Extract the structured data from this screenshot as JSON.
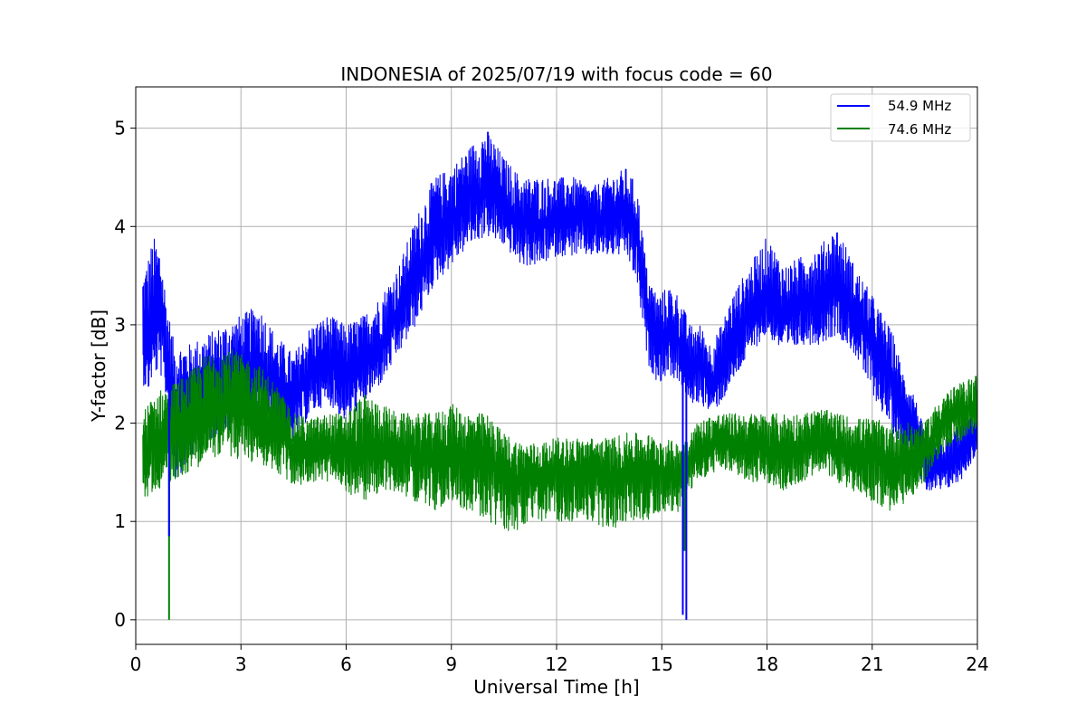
{
  "chart_data": {
    "type": "line",
    "title": "INDONESIA of 2025/07/19 with focus code = 60",
    "xlabel": "Universal Time [h]",
    "ylabel": "Y-factor [dB]",
    "xlim": [
      0,
      24
    ],
    "ylim": [
      -0.25,
      5.42
    ],
    "xticks": [
      0,
      3,
      6,
      9,
      12,
      15,
      18,
      21,
      24
    ],
    "yticks": [
      0,
      1,
      2,
      3,
      4,
      5
    ],
    "grid": true,
    "legend_position": "top-right",
    "series": [
      {
        "name": "54.9 MHz",
        "color": "#0000ff",
        "x": [
          0.2,
          0.35,
          0.5,
          0.7,
          0.9,
          1.1,
          1.5,
          2.0,
          2.5,
          3.0,
          3.5,
          4.0,
          4.5,
          5.0,
          5.5,
          6.0,
          6.5,
          7.0,
          7.5,
          8.0,
          8.5,
          9.0,
          9.5,
          10.0,
          10.5,
          11.0,
          11.5,
          12.0,
          12.5,
          13.0,
          13.5,
          14.0,
          14.3,
          14.6,
          14.9,
          15.2,
          15.5,
          15.8,
          16.1,
          16.4,
          16.7,
          17.0,
          17.5,
          18.0,
          18.5,
          19.0,
          19.5,
          20.0,
          20.5,
          21.0,
          21.3,
          21.6,
          21.9,
          22.2,
          22.5,
          23.0,
          23.5,
          24.0
        ],
        "center": [
          3.0,
          2.8,
          3.0,
          3.1,
          2.6,
          2.2,
          2.2,
          2.3,
          2.4,
          2.5,
          2.6,
          2.3,
          2.2,
          2.5,
          2.6,
          2.5,
          2.6,
          2.8,
          3.1,
          3.5,
          3.9,
          4.1,
          4.3,
          4.4,
          4.2,
          4.0,
          4.0,
          4.05,
          4.1,
          4.05,
          4.1,
          4.1,
          3.9,
          3.1,
          2.8,
          2.9,
          2.8,
          2.5,
          2.6,
          2.4,
          2.6,
          2.8,
          3.1,
          3.3,
          3.1,
          3.2,
          3.3,
          3.4,
          3.1,
          2.8,
          2.6,
          2.4,
          2.1,
          2.0,
          1.6,
          1.55,
          1.7,
          1.9
        ],
        "lower": [
          2.4,
          2.3,
          2.5,
          2.5,
          2.2,
          1.4,
          1.6,
          1.8,
          1.9,
          1.9,
          2.0,
          1.8,
          1.8,
          2.1,
          2.2,
          2.0,
          2.2,
          2.4,
          2.7,
          3.0,
          3.4,
          3.6,
          3.8,
          3.9,
          3.8,
          3.6,
          3.6,
          3.7,
          3.7,
          3.7,
          3.7,
          3.7,
          3.4,
          2.6,
          2.4,
          2.5,
          2.4,
          2.2,
          2.2,
          2.1,
          2.2,
          2.4,
          2.7,
          2.9,
          2.7,
          2.8,
          2.8,
          2.9,
          2.7,
          2.3,
          2.1,
          1.9,
          1.7,
          1.6,
          1.3,
          1.3,
          1.4,
          1.7
        ],
        "upper": [
          3.5,
          3.7,
          3.9,
          3.8,
          3.2,
          2.8,
          2.8,
          2.9,
          3.0,
          3.1,
          3.2,
          2.9,
          2.7,
          3.0,
          3.1,
          3.0,
          3.1,
          3.3,
          3.6,
          4.1,
          4.5,
          4.6,
          4.8,
          5.0,
          4.7,
          4.5,
          4.5,
          4.5,
          4.5,
          4.4,
          4.5,
          4.6,
          4.4,
          3.5,
          3.3,
          3.4,
          3.3,
          3.0,
          3.0,
          2.8,
          3.0,
          3.3,
          3.6,
          3.9,
          3.6,
          3.7,
          3.8,
          4.0,
          3.6,
          3.3,
          3.1,
          2.9,
          2.5,
          2.3,
          1.9,
          1.8,
          2.0,
          2.1
        ]
      },
      {
        "name": "74.6 MHz",
        "color": "#008000",
        "x": [
          0.2,
          0.5,
          1.0,
          1.5,
          2.0,
          2.5,
          3.0,
          3.5,
          4.0,
          4.5,
          5.0,
          5.5,
          6.0,
          6.5,
          7.0,
          7.5,
          8.0,
          8.5,
          9.0,
          9.5,
          10.0,
          10.5,
          11.0,
          11.5,
          12.0,
          12.5,
          13.0,
          13.5,
          14.0,
          14.5,
          15.0,
          15.5,
          16.0,
          16.5,
          17.0,
          17.5,
          18.0,
          18.5,
          19.0,
          19.5,
          20.0,
          20.5,
          21.0,
          21.5,
          22.0,
          22.5,
          23.0,
          23.5,
          24.0
        ],
        "center": [
          1.7,
          1.8,
          1.9,
          2.0,
          2.1,
          2.2,
          2.2,
          2.1,
          1.9,
          1.75,
          1.7,
          1.75,
          1.7,
          1.7,
          1.75,
          1.7,
          1.7,
          1.65,
          1.7,
          1.65,
          1.6,
          1.5,
          1.45,
          1.45,
          1.5,
          1.5,
          1.5,
          1.45,
          1.5,
          1.5,
          1.5,
          1.45,
          1.7,
          1.8,
          1.8,
          1.75,
          1.75,
          1.7,
          1.75,
          1.8,
          1.75,
          1.7,
          1.65,
          1.6,
          1.6,
          1.7,
          2.0,
          2.1,
          2.2
        ],
        "lower": [
          1.2,
          1.3,
          1.4,
          1.5,
          1.6,
          1.7,
          1.6,
          1.6,
          1.5,
          1.35,
          1.4,
          1.4,
          1.3,
          1.2,
          1.3,
          1.3,
          1.2,
          1.1,
          1.2,
          1.1,
          1.0,
          0.9,
          0.9,
          1.0,
          1.0,
          1.0,
          1.0,
          0.9,
          1.0,
          1.0,
          1.1,
          1.1,
          1.4,
          1.5,
          1.5,
          1.4,
          1.4,
          1.3,
          1.4,
          1.5,
          1.4,
          1.3,
          1.2,
          1.1,
          1.2,
          1.4,
          1.7,
          1.8,
          1.9
        ],
        "upper": [
          2.1,
          2.3,
          2.4,
          2.5,
          2.7,
          2.8,
          2.7,
          2.6,
          2.4,
          2.1,
          2.05,
          2.1,
          2.1,
          2.3,
          2.2,
          2.1,
          2.1,
          2.1,
          2.2,
          2.1,
          2.1,
          1.9,
          1.8,
          1.8,
          1.85,
          1.85,
          1.85,
          1.85,
          1.9,
          1.9,
          1.85,
          1.8,
          2.0,
          2.1,
          2.1,
          2.1,
          2.1,
          2.1,
          2.1,
          2.15,
          2.1,
          2.05,
          2.05,
          2.0,
          2.0,
          2.0,
          2.3,
          2.4,
          2.5
        ],
        "spikes": [
          {
            "x": 0.95,
            "y": 0.0
          },
          {
            "x": 15.65,
            "y": 0.7
          }
        ]
      }
    ],
    "dropouts": [
      {
        "series": "54.9 MHz",
        "x": 0.95,
        "y": 0.85
      },
      {
        "series": "54.9 MHz",
        "x": 15.6,
        "y": 0.05
      },
      {
        "series": "54.9 MHz",
        "x": 15.7,
        "y": 0.0
      }
    ]
  }
}
